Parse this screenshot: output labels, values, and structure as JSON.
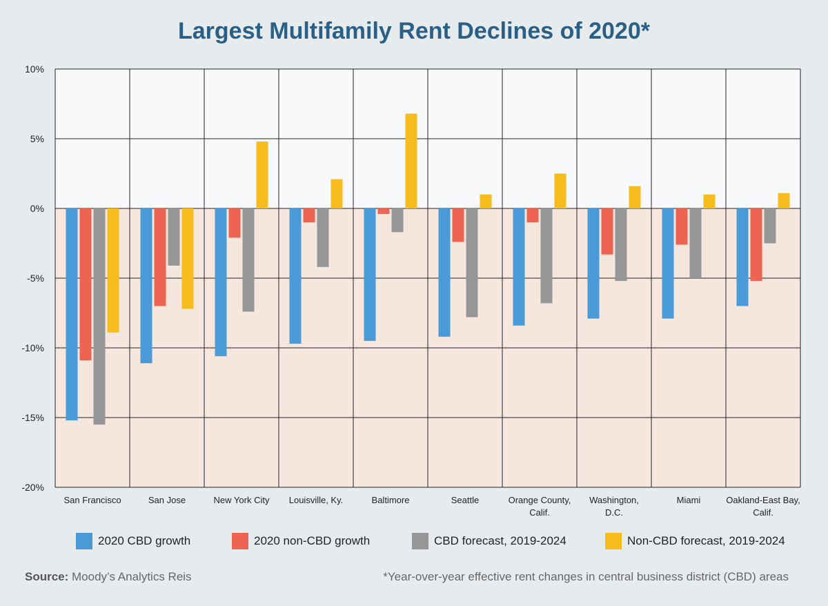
{
  "chart_data": {
    "type": "bar",
    "title": "Largest Multifamily Rent Declines of 2020*",
    "categories": [
      [
        "San Francisco"
      ],
      [
        "San Jose"
      ],
      [
        "New York City"
      ],
      [
        "Louisville, Ky."
      ],
      [
        "Baltimore"
      ],
      [
        "Seattle"
      ],
      [
        "Orange County,",
        "Calif."
      ],
      [
        "Washington,",
        "D.C."
      ],
      [
        "Miami"
      ],
      [
        "Oakland-East Bay,",
        "Calif."
      ]
    ],
    "series": [
      {
        "name": "2020 CBD growth",
        "color": "#4a9ad8",
        "values": [
          -15.2,
          -11.1,
          -10.6,
          -9.7,
          -9.5,
          -9.2,
          -8.4,
          -7.9,
          -7.9,
          -7.0
        ]
      },
      {
        "name": "2020 non-CBD growth",
        "color": "#ee6452",
        "values": [
          -10.9,
          -7.0,
          -2.1,
          -1.0,
          -0.4,
          -2.4,
          -1.0,
          -3.3,
          -2.6,
          -5.2
        ]
      },
      {
        "name": "CBD forecast, 2019-2024",
        "color": "#969696",
        "values": [
          -15.5,
          -4.1,
          -7.4,
          -4.2,
          -1.7,
          -7.8,
          -6.8,
          -5.2,
          -5.0,
          -2.5
        ]
      },
      {
        "name": "Non-CBD forecast, 2019-2024",
        "color": "#f7bc1e",
        "values": [
          -8.9,
          -7.2,
          4.8,
          2.1,
          6.8,
          1.0,
          2.5,
          1.6,
          1.0,
          1.1
        ]
      }
    ],
    "ylim": [
      -20,
      10
    ],
    "yticks": [
      10,
      5,
      0,
      -5,
      -10,
      -15,
      -20
    ],
    "ytick_labels": [
      "10%",
      "5%",
      "0%",
      "-5%",
      "-10%",
      "-15%",
      "-20%"
    ],
    "legend_position": "bottom",
    "grid": true,
    "positive_region_color": "#f6f8fa",
    "negative_region_color": "#f5e6de"
  },
  "source_label": "Source:",
  "source_text": " Moody’s Analytics Reis",
  "footnote": "*Year-over-year effective rent changes in central business district (CBD) areas"
}
